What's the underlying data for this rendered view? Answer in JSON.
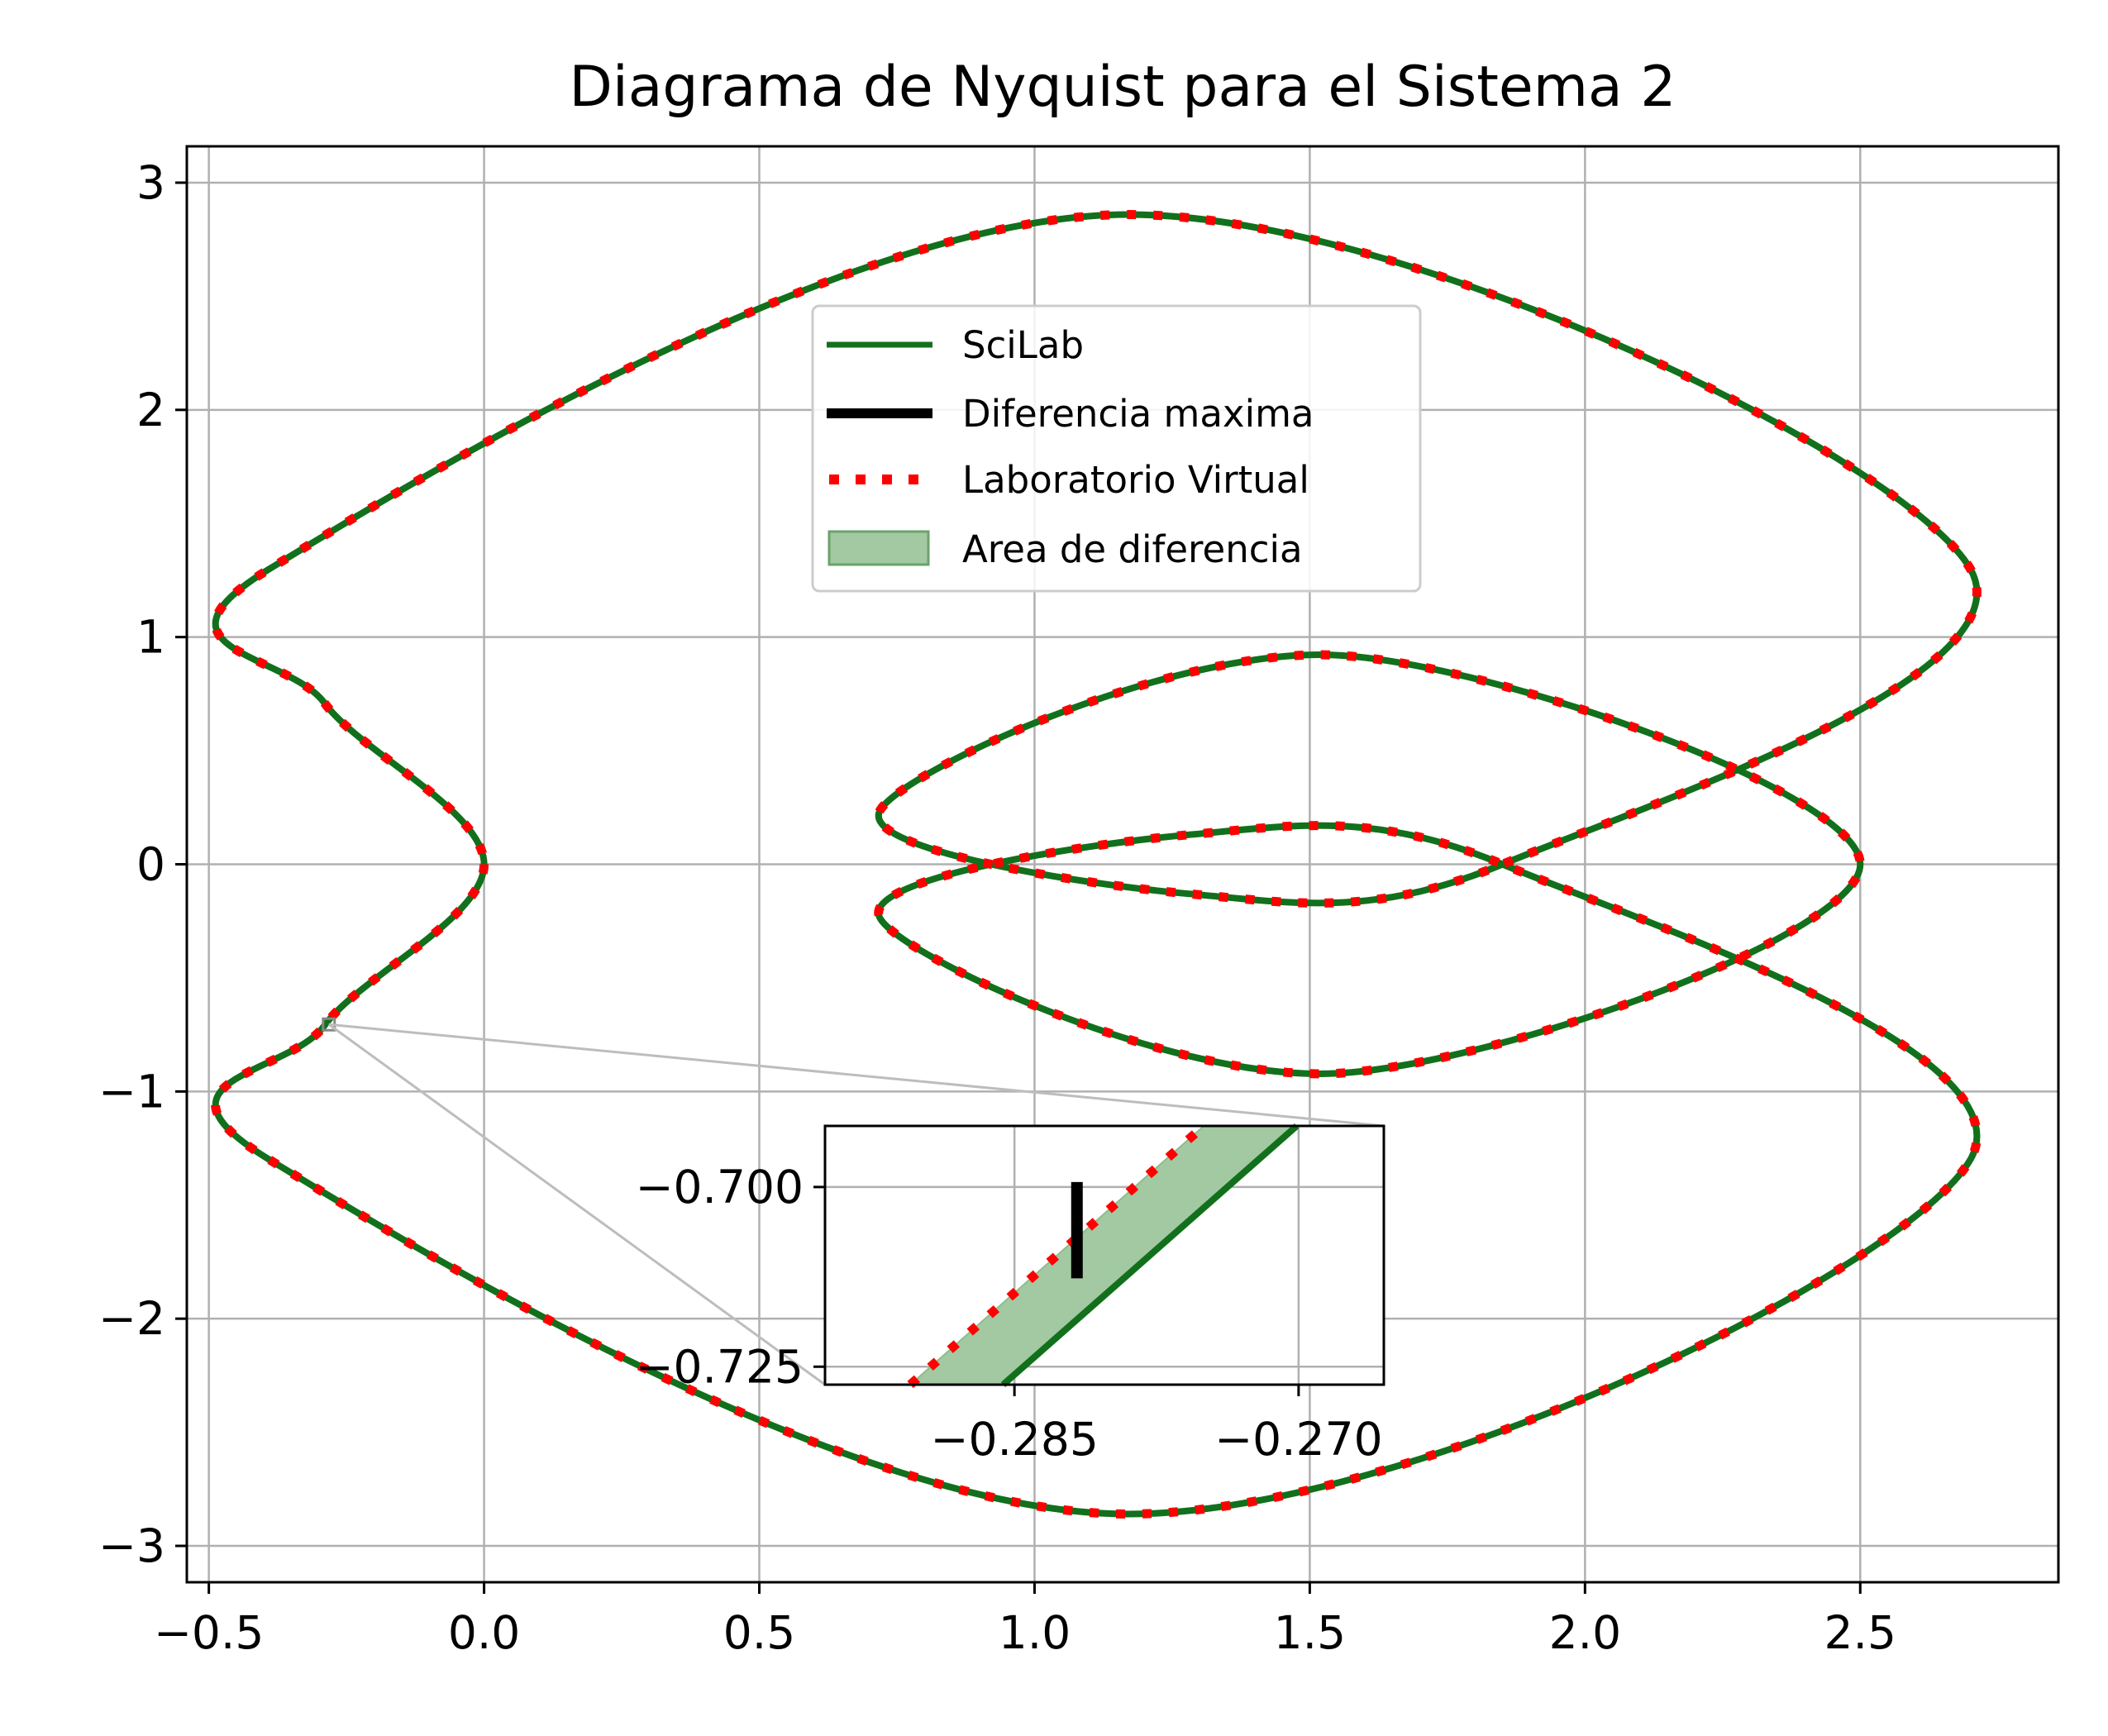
{
  "chart_data": [
    {
      "id": "main",
      "type": "line",
      "title": "Diagrama de Nyquist para el Sistema 2",
      "xlabel": "",
      "ylabel": "",
      "xlim": [
        -0.54,
        2.86
      ],
      "ylim": [
        -3.16,
        3.16
      ],
      "grid": true,
      "legend_position": "upper-center",
      "xticks": [
        -0.5,
        0.0,
        0.5,
        1.0,
        1.5,
        2.0,
        2.5
      ],
      "xtick_labels": [
        "−0.5",
        "0.0",
        "0.5",
        "1.0",
        "1.5",
        "2.0",
        "2.5"
      ],
      "yticks": [
        -3,
        -2,
        -1,
        0,
        1,
        2,
        3
      ],
      "ytick_labels": [
        "−3",
        "−2",
        "−1",
        "0",
        "1",
        "2",
        "3"
      ],
      "series": [
        {
          "name": "SciLab",
          "style": "solid",
          "color": "#12701c"
        },
        {
          "name": "Diferencia maxima",
          "style": "thick-solid",
          "color": "#000000"
        },
        {
          "name": "Laboratorio Virtual",
          "style": "dotted",
          "color": "#ff0000"
        },
        {
          "name": "Area de diferencia",
          "style": "fill",
          "color": "#a2c9a2"
        }
      ],
      "curve_sample_points": [
        {
          "x": 0.0,
          "y": 0.0
        },
        {
          "x": -0.29,
          "y": -0.71
        },
        {
          "x": -0.39,
          "y": -1.3
        },
        {
          "x": 1.17,
          "y": -2.86
        },
        {
          "x": 2.7,
          "y": -1.3
        },
        {
          "x": 1.85,
          "y": 0.0
        },
        {
          "x": 1.28,
          "y": 0.13
        },
        {
          "x": 0.72,
          "y": -0.24
        },
        {
          "x": 1.55,
          "y": -0.92
        },
        {
          "x": 2.5,
          "y": 0.0
        },
        {
          "x": 1.55,
          "y": 0.92
        },
        {
          "x": 0.72,
          "y": 0.24
        },
        {
          "x": 1.28,
          "y": -0.13
        },
        {
          "x": 1.85,
          "y": 0.0
        },
        {
          "x": 2.7,
          "y": 1.3
        },
        {
          "x": 1.17,
          "y": 2.86
        },
        {
          "x": -0.39,
          "y": 1.3
        },
        {
          "x": -0.29,
          "y": 0.71
        },
        {
          "x": 0.0,
          "y": 0.0
        }
      ]
    },
    {
      "id": "inset",
      "type": "line",
      "title": "",
      "xlim": [
        -0.295,
        -0.2655
      ],
      "ylim": [
        -0.7275,
        -0.6915
      ],
      "grid": true,
      "xticks": [
        -0.285,
        -0.27
      ],
      "xtick_labels": [
        "−0.285",
        "−0.270"
      ],
      "yticks": [
        -0.7,
        -0.725
      ],
      "ytick_labels": [
        "−0.700",
        "−0.725"
      ],
      "scilab_line": [
        {
          "x": -0.2856,
          "y": -0.7275
        },
        {
          "x": -0.2701,
          "y": -0.6915
        }
      ],
      "lab_line": [
        {
          "x": -0.2905,
          "y": -0.7275
        },
        {
          "x": -0.275,
          "y": -0.6915
        }
      ],
      "max_difference": {
        "x": -0.2817,
        "y_top": -0.6993,
        "y_bottom": -0.7127
      },
      "zoom_source": {
        "x": -0.282,
        "y": -0.705
      }
    }
  ]
}
